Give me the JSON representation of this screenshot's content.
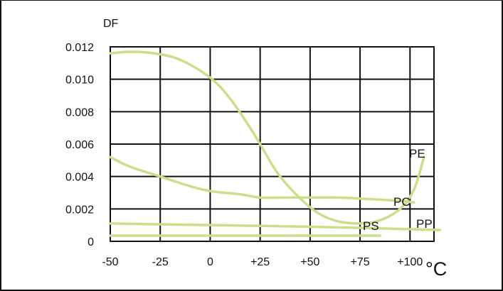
{
  "chart_data": {
    "type": "line",
    "title": "",
    "xlabel": "°C",
    "ylabel": "DF",
    "xlim": [
      -50,
      112
    ],
    "ylim": [
      0,
      0.012
    ],
    "grid": true,
    "x_ticks": [
      -50,
      -25,
      0,
      25,
      50,
      75,
      100
    ],
    "x_tick_labels": [
      "-50",
      "-25",
      "0",
      "+25",
      "+50",
      "+75",
      "+100"
    ],
    "y_ticks": [
      0,
      0.002,
      0.004,
      0.006,
      0.008,
      0.01,
      0.012
    ],
    "y_tick_labels": [
      "0",
      "0.002",
      "0.004",
      "0.006",
      "0.008",
      "0.010",
      "0.012"
    ],
    "line_color": "#c9df8a",
    "series": [
      {
        "name": "PC",
        "x": [
          -50,
          -40,
          -28,
          -15,
          0,
          10,
          20,
          25,
          35,
          50,
          62,
          75,
          85,
          95,
          102,
          107
        ],
        "y": [
          0.0116,
          0.0117,
          0.0116,
          0.0112,
          0.0101,
          0.0088,
          0.007,
          0.006,
          0.004,
          0.0021,
          0.0013,
          0.0011,
          0.0013,
          0.002,
          0.0032,
          0.0052
        ]
      },
      {
        "name": "PE",
        "x": [
          -50,
          -40,
          -25,
          -10,
          0,
          15,
          25,
          35,
          50,
          65,
          80,
          95,
          102
        ],
        "y": [
          0.0052,
          0.0046,
          0.004,
          0.0034,
          0.0031,
          0.0029,
          0.0027,
          0.0027,
          0.0027,
          0.0027,
          0.0026,
          0.0025,
          0.0024
        ]
      },
      {
        "name": "PP",
        "x": [
          -50,
          0,
          50,
          100,
          115
        ],
        "y": [
          0.0011,
          0.001,
          0.0009,
          0.00075,
          0.0007
        ]
      },
      {
        "name": "PS",
        "x": [
          -50,
          0,
          50,
          85
        ],
        "y": [
          0.00035,
          0.00035,
          0.00035,
          0.00035
        ]
      }
    ],
    "series_labels": [
      {
        "name": "PE",
        "text": "PE"
      },
      {
        "name": "PC",
        "text": "PC"
      },
      {
        "name": "PS",
        "text": "PS"
      },
      {
        "name": "PP",
        "text": "PP"
      }
    ]
  }
}
